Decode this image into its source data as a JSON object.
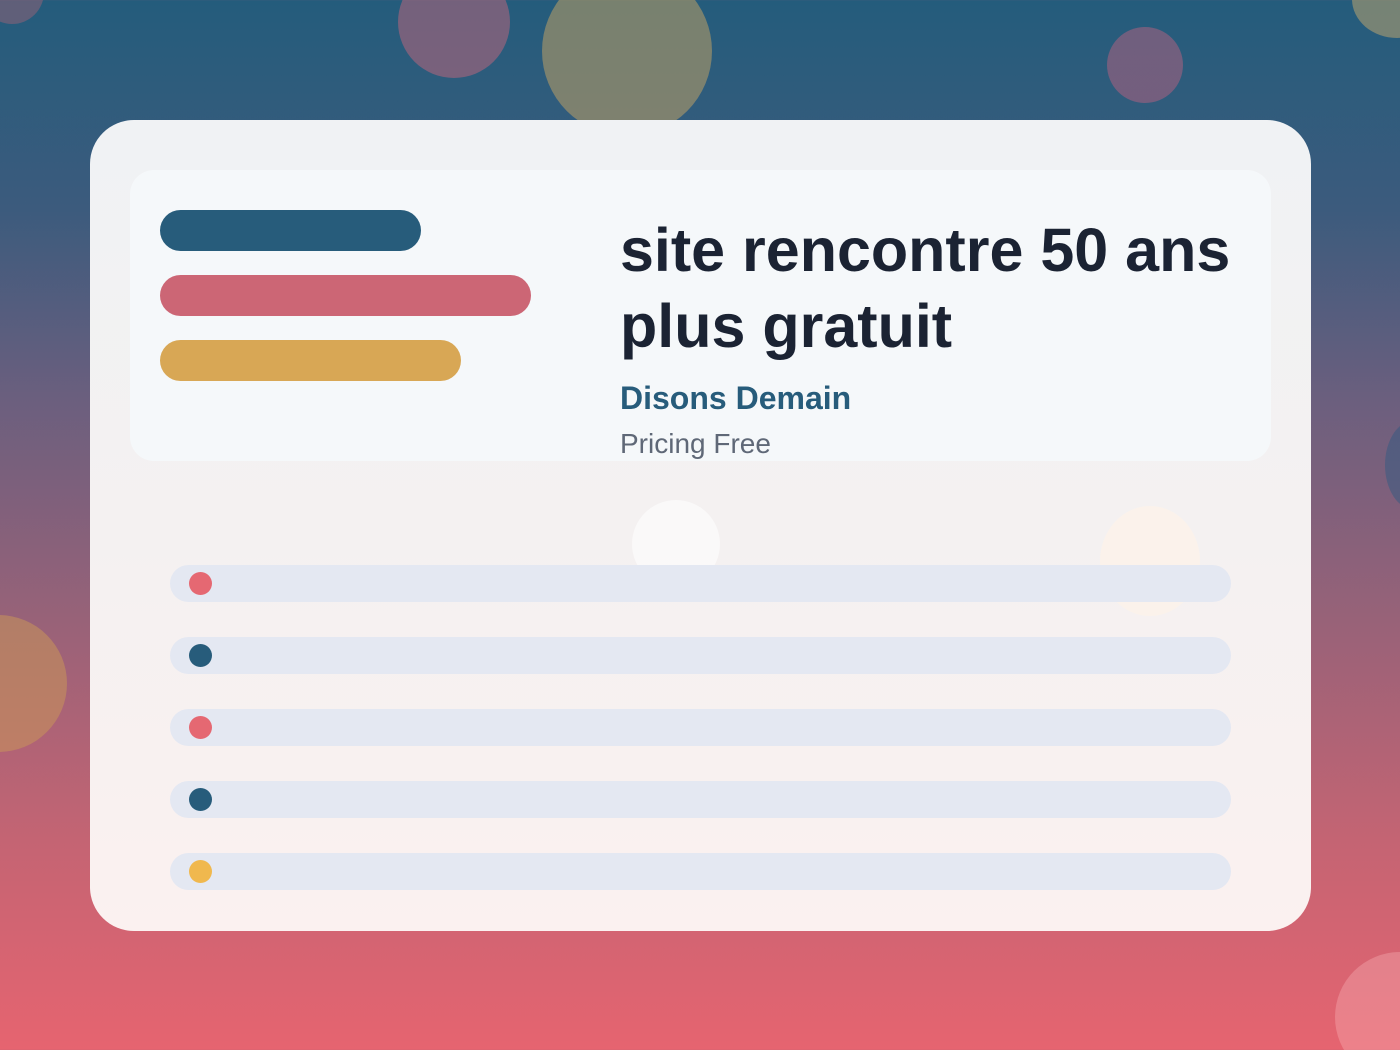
{
  "colors": {
    "navy": "#275c7b",
    "rose": "#cc6675",
    "gold": "#d8a755",
    "dot_red": "#e56872",
    "dot_navy": "#275c7b",
    "dot_yellow": "#f0b84e",
    "title_text": "#1b2333",
    "row_bg": "#e4e8f2"
  },
  "hero": {
    "title": "site rencontre 50 ans plus gratuit",
    "subtitle": "Disons Demain",
    "pricing": "Pricing Free"
  },
  "list": {
    "rows": [
      {
        "dot_color": "#e56872"
      },
      {
        "dot_color": "#275c7b"
      },
      {
        "dot_color": "#e56872"
      },
      {
        "dot_color": "#275c7b"
      },
      {
        "dot_color": "#f0b84e"
      }
    ]
  }
}
